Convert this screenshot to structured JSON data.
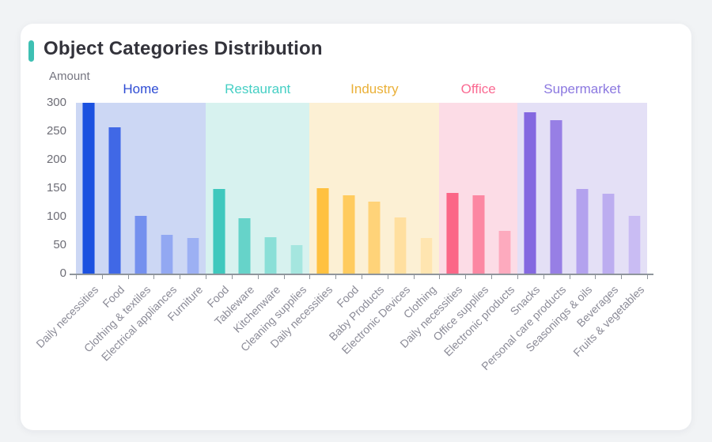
{
  "accent_color": "#3ec0b3",
  "chart_data": {
    "type": "bar",
    "title": "Object Categories Distribution",
    "ylabel": "Amount",
    "ylim": [
      0,
      300
    ],
    "yticks": [
      0,
      50,
      100,
      150,
      200,
      250,
      300
    ],
    "grid": false,
    "legend_position": "none",
    "xlabel": "",
    "groups": [
      {
        "name": "Home",
        "label_color": "#2e4cd4",
        "band_color": "#ccd7f4",
        "bars": [
          {
            "label": "Daily necessities",
            "value": 300,
            "color": "#1b51e0"
          },
          {
            "label": "Food",
            "value": 257,
            "color": "#4068e6"
          },
          {
            "label": "Clothing & textiles",
            "value": 102,
            "color": "#7490ee"
          },
          {
            "label": "Electrical appliances",
            "value": 68,
            "color": "#92a8f2"
          },
          {
            "label": "Furniture",
            "value": 63,
            "color": "#9cb0f3"
          }
        ]
      },
      {
        "name": "Restaurant",
        "label_color": "#45cfc4",
        "band_color": "#d7f2ef",
        "bars": [
          {
            "label": "Food",
            "value": 149,
            "color": "#3fc8bd"
          },
          {
            "label": "Tableware",
            "value": 97,
            "color": "#66d3c9"
          },
          {
            "label": "Kitchenware",
            "value": 64,
            "color": "#8adfd7"
          },
          {
            "label": "Cleaning supplies",
            "value": 50,
            "color": "#a5e6df"
          }
        ]
      },
      {
        "name": "Industry",
        "label_color": "#eab038",
        "band_color": "#fcf0d4",
        "bars": [
          {
            "label": "Daily necessities",
            "value": 150,
            "color": "#ffc140"
          },
          {
            "label": "Food",
            "value": 138,
            "color": "#ffcb5e"
          },
          {
            "label": "Baby Products",
            "value": 126,
            "color": "#ffd379"
          },
          {
            "label": "Electronic Devices",
            "value": 99,
            "color": "#ffdf9f"
          },
          {
            "label": "Clothing",
            "value": 62,
            "color": "#ffe5b0"
          }
        ]
      },
      {
        "name": "Office",
        "label_color": "#fa6a92",
        "band_color": "#fcdce6",
        "bars": [
          {
            "label": "Daily necessities",
            "value": 142,
            "color": "#fb6687"
          },
          {
            "label": "Office supplies",
            "value": 138,
            "color": "#fc87a2"
          },
          {
            "label": "Electronic products",
            "value": 75,
            "color": "#fdaabe"
          }
        ]
      },
      {
        "name": "Supermarket",
        "label_color": "#8b78e0",
        "band_color": "#e4e0f6",
        "bars": [
          {
            "label": "Snacks",
            "value": 283,
            "color": "#8468e0"
          },
          {
            "label": "Personal care products",
            "value": 270,
            "color": "#977fe5"
          },
          {
            "label": "Seasonings & oils",
            "value": 148,
            "color": "#b3a2ee"
          },
          {
            "label": "Beverages",
            "value": 140,
            "color": "#bcadf0"
          },
          {
            "label": "Fruits & vegetables",
            "value": 101,
            "color": "#c9bcf3"
          }
        ]
      }
    ]
  }
}
